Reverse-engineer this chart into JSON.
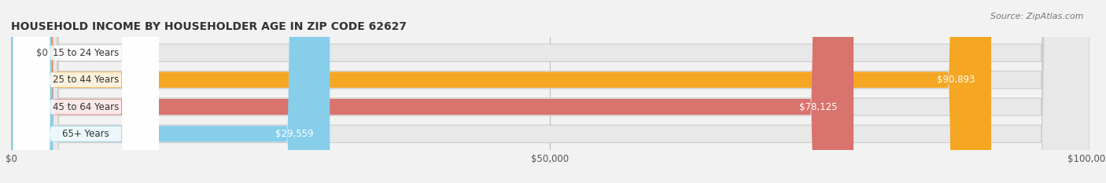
{
  "title": "HOUSEHOLD INCOME BY HOUSEHOLDER AGE IN ZIP CODE 62627",
  "source": "Source: ZipAtlas.com",
  "categories": [
    "15 to 24 Years",
    "25 to 44 Years",
    "45 to 64 Years",
    "65+ Years"
  ],
  "values": [
    0,
    90893,
    78125,
    29559
  ],
  "bar_colors": [
    "#f08080",
    "#f5a623",
    "#d9736e",
    "#87CEEB"
  ],
  "xlim": [
    0,
    100000
  ],
  "xticks": [
    0,
    50000,
    100000
  ],
  "xtick_labels": [
    "$0",
    "$50,000",
    "$100,000"
  ],
  "value_labels": [
    "$0",
    "$90,893",
    "$78,125",
    "$29,559"
  ],
  "figsize": [
    14.06,
    2.33
  ],
  "dpi": 100
}
